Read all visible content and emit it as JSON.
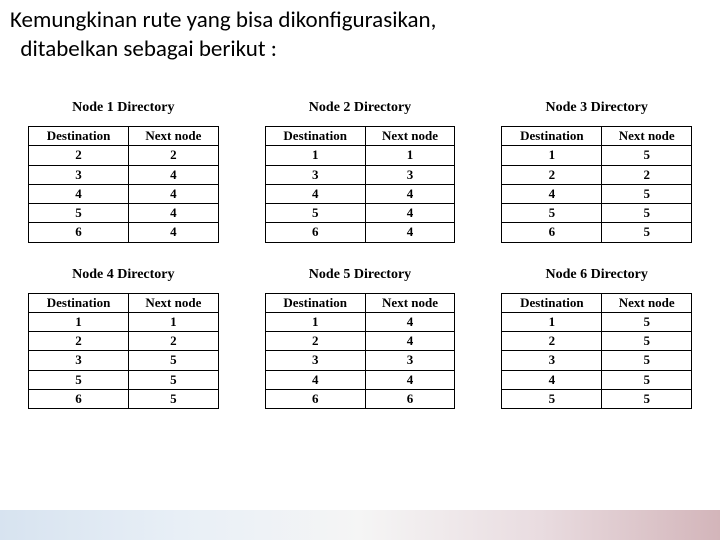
{
  "title_line1": "Kemungkinan rute yang bisa dikonfigurasikan,",
  "title_line2": "ditabelkan sebagai berikut :",
  "columns": [
    "Destination",
    "Next node"
  ],
  "nodes": [
    {
      "title": "Node 1 Directory",
      "rows": [
        [
          "2",
          "2"
        ],
        [
          "3",
          "4"
        ],
        [
          "4",
          "4"
        ],
        [
          "5",
          "4"
        ],
        [
          "6",
          "4"
        ]
      ]
    },
    {
      "title": "Node 2 Directory",
      "rows": [
        [
          "1",
          "1"
        ],
        [
          "3",
          "3"
        ],
        [
          "4",
          "4"
        ],
        [
          "5",
          "4"
        ],
        [
          "6",
          "4"
        ]
      ]
    },
    {
      "title": "Node 3 Directory",
      "rows": [
        [
          "1",
          "5"
        ],
        [
          "2",
          "2"
        ],
        [
          "4",
          "5"
        ],
        [
          "5",
          "5"
        ],
        [
          "6",
          "5"
        ]
      ]
    },
    {
      "title": "Node 4 Directory",
      "rows": [
        [
          "1",
          "1"
        ],
        [
          "2",
          "2"
        ],
        [
          "3",
          "5"
        ],
        [
          "5",
          "5"
        ],
        [
          "6",
          "5"
        ]
      ]
    },
    {
      "title": "Node 5 Directory",
      "rows": [
        [
          "1",
          "4"
        ],
        [
          "2",
          "4"
        ],
        [
          "3",
          "3"
        ],
        [
          "4",
          "4"
        ],
        [
          "6",
          "6"
        ]
      ]
    },
    {
      "title": "Node 6 Directory",
      "rows": [
        [
          "1",
          "5"
        ],
        [
          "2",
          "5"
        ],
        [
          "3",
          "5"
        ],
        [
          "4",
          "5"
        ],
        [
          "5",
          "5"
        ]
      ]
    }
  ],
  "style": {
    "page_bg": "#ffffff",
    "title_color": "#000000",
    "title_fontsize": 23,
    "dir_title_fontsize": 14,
    "cell_fontsize": 13,
    "border_color": "#000000",
    "gradient_bar": {
      "height": 30,
      "stops": [
        "#d7e3f0",
        "#e8eff6",
        "#f5f5f5",
        "#e9dce0",
        "#d3b5ba"
      ]
    },
    "grid": {
      "cols": 3,
      "row_gap": 24,
      "col_gap": 46
    }
  }
}
